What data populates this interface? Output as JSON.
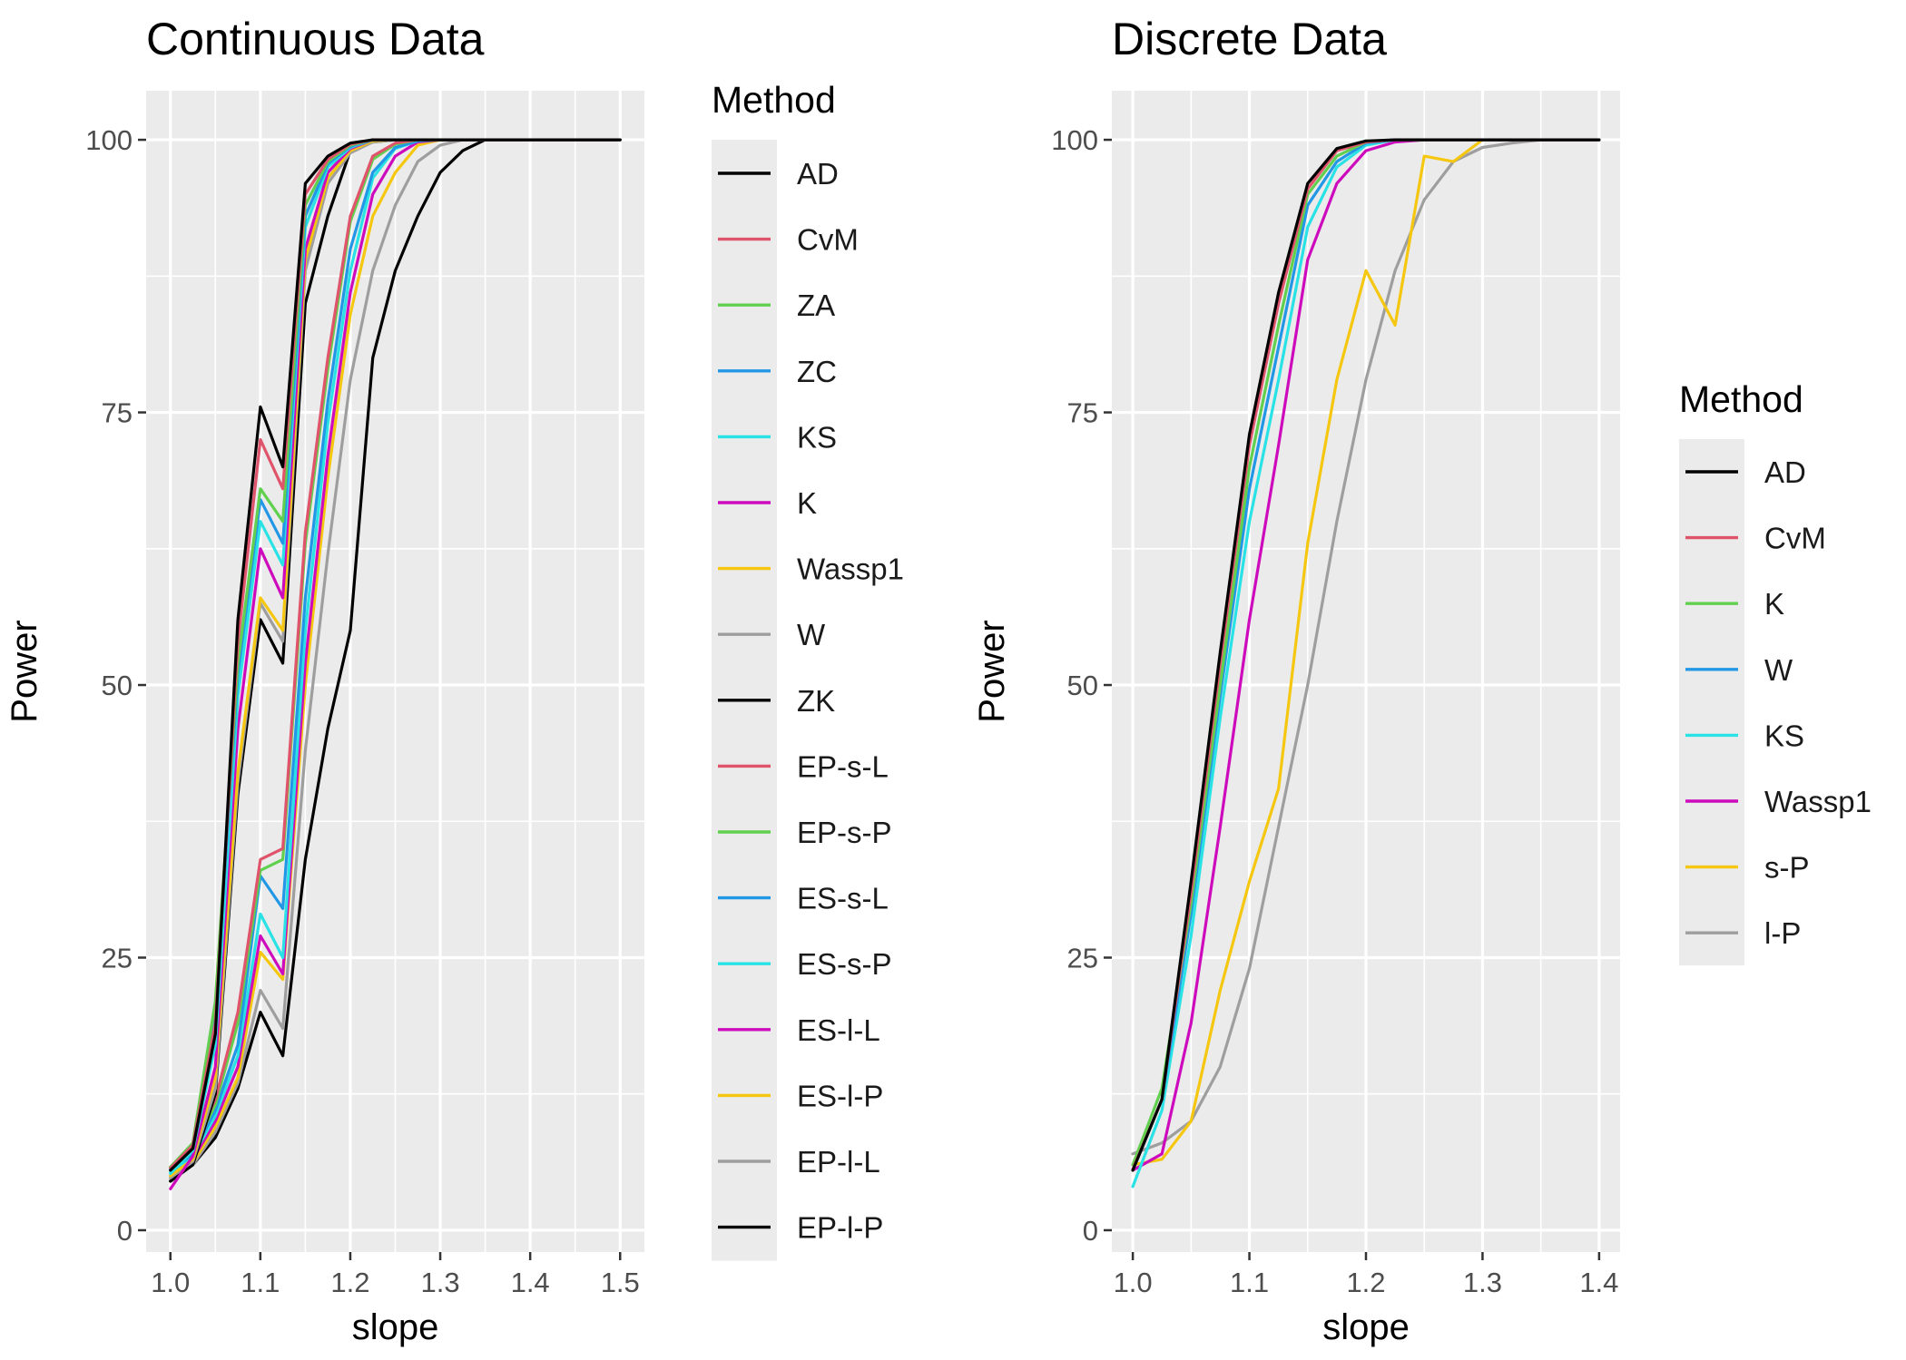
{
  "chart_data": [
    {
      "type": "line",
      "title": "Continuous Data",
      "xlabel": "slope",
      "ylabel": "Power",
      "xlim": [
        0.973,
        1.527
      ],
      "ylim": [
        -2,
        104.5
      ],
      "xticks": [
        1.0,
        1.1,
        1.2,
        1.3,
        1.4,
        1.5
      ],
      "xtick_labels": [
        "1.0",
        "1.1",
        "1.2",
        "1.3",
        "1.4",
        "1.5"
      ],
      "yticks": [
        0,
        25,
        50,
        75,
        100
      ],
      "ytick_labels": [
        "0",
        "25",
        "50",
        "75",
        "100"
      ],
      "legend": {
        "title": "Method",
        "placement": "right"
      },
      "x": [
        1.0,
        1.025,
        1.05,
        1.075,
        1.1,
        1.125,
        1.15,
        1.175,
        1.2,
        1.225,
        1.25,
        1.275,
        1.3,
        1.325,
        1.35,
        1.375,
        1.4,
        1.425,
        1.45,
        1.475,
        1.5
      ],
      "series": [
        {
          "name": "AD",
          "color": "#000000",
          "values": [
            5.5,
            7.5,
            18,
            56,
            75.5,
            70,
            96,
            98.5,
            99.7,
            100,
            100,
            100,
            100,
            100,
            100,
            100,
            100,
            100,
            100,
            100,
            100
          ]
        },
        {
          "name": "CvM",
          "color": "#DF536B",
          "values": [
            5.7,
            7.8,
            19,
            54,
            72.5,
            68,
            95,
            98.2,
            99.6,
            100,
            100,
            100,
            100,
            100,
            100,
            100,
            100,
            100,
            100,
            100,
            100
          ]
        },
        {
          "name": "ZA",
          "color": "#61D04F",
          "values": [
            5.8,
            8,
            21,
            52,
            68,
            65,
            94,
            98,
            99.5,
            100,
            100,
            100,
            100,
            100,
            100,
            100,
            100,
            100,
            100,
            100,
            100
          ]
        },
        {
          "name": "ZC",
          "color": "#2297E6",
          "values": [
            5.6,
            7.7,
            20,
            51,
            67,
            63,
            93,
            97.8,
            99.4,
            100,
            100,
            100,
            100,
            100,
            100,
            100,
            100,
            100,
            100,
            100,
            100
          ]
        },
        {
          "name": "KS",
          "color": "#28E2E5",
          "values": [
            5.2,
            7.3,
            17,
            49,
            65,
            61,
            92,
            97.5,
            99.3,
            100,
            100,
            100,
            100,
            100,
            100,
            100,
            100,
            100,
            100,
            100,
            100
          ]
        },
        {
          "name": "K",
          "color": "#CD0BBC",
          "values": [
            3.8,
            6.8,
            15,
            46,
            62.5,
            58,
            90,
            97,
            99.2,
            100,
            100,
            100,
            100,
            100,
            100,
            100,
            100,
            100,
            100,
            100,
            100
          ]
        },
        {
          "name": "Wassp1",
          "color": "#F5C710",
          "values": [
            5.0,
            6.5,
            14,
            42,
            58,
            55,
            89,
            96.5,
            99,
            99.9,
            100,
            100,
            100,
            100,
            100,
            100,
            100,
            100,
            100,
            100,
            100
          ]
        },
        {
          "name": "W",
          "color": "#9E9E9E",
          "values": [
            4.8,
            6.3,
            13,
            41,
            57.5,
            54,
            88,
            96,
            98.8,
            99.8,
            100,
            100,
            100,
            100,
            100,
            100,
            100,
            100,
            100,
            100,
            100
          ]
        },
        {
          "name": "ZK",
          "color": "#000000",
          "values": [
            4.5,
            6.0,
            12.5,
            40,
            56,
            52,
            85,
            93,
            99,
            99.8,
            100,
            100,
            100,
            100,
            100,
            100,
            100,
            100,
            100,
            100,
            100
          ]
        },
        {
          "name": "EP-s-L",
          "color": "#DF536B",
          "values": [
            5.8,
            7.5,
            12,
            20,
            34,
            35,
            64,
            80,
            93,
            98.5,
            99.7,
            100,
            100,
            100,
            100,
            100,
            100,
            100,
            100,
            100,
            100
          ]
        },
        {
          "name": "EP-s-P",
          "color": "#61D04F",
          "values": [
            5.6,
            7.3,
            11.5,
            19,
            33,
            34,
            63,
            79,
            92.5,
            98.2,
            99.6,
            100,
            100,
            100,
            100,
            100,
            100,
            100,
            100,
            100,
            100
          ]
        },
        {
          "name": "ES-s-L",
          "color": "#2297E6",
          "values": [
            5.5,
            7.0,
            11,
            17,
            32.5,
            29.5,
            58,
            76,
            90,
            97,
            99.3,
            99.9,
            100,
            100,
            100,
            100,
            100,
            100,
            100,
            100,
            100
          ]
        },
        {
          "name": "ES-s-P",
          "color": "#28E2E5",
          "values": [
            5.3,
            6.8,
            10.5,
            16,
            29,
            25,
            55,
            74,
            88,
            96.5,
            99.2,
            99.9,
            100,
            100,
            100,
            100,
            100,
            100,
            100,
            100,
            100
          ]
        },
        {
          "name": "ES-l-L",
          "color": "#CD0BBC",
          "values": [
            5.0,
            6.5,
            10,
            15,
            27,
            23.5,
            52,
            71,
            86,
            95,
            98.5,
            99.8,
            100,
            100,
            100,
            100,
            100,
            100,
            100,
            100,
            100
          ]
        },
        {
          "name": "ES-l-P",
          "color": "#F5C710",
          "values": [
            4.8,
            6.2,
            9.5,
            14,
            25.5,
            23,
            50,
            69,
            84,
            93,
            97,
            99.5,
            100,
            100,
            100,
            100,
            100,
            100,
            100,
            100,
            100
          ]
        },
        {
          "name": "EP-l-L",
          "color": "#9E9E9E",
          "values": [
            4.6,
            6.0,
            9,
            13.5,
            22,
            18.5,
            44,
            62,
            78,
            88,
            94,
            98,
            99.5,
            100,
            100,
            100,
            100,
            100,
            100,
            100,
            100
          ]
        },
        {
          "name": "EP-l-P",
          "color": "#000000",
          "values": [
            4.5,
            6.0,
            8.5,
            13,
            20,
            16,
            34,
            46,
            55,
            80,
            88,
            93,
            97,
            99,
            100,
            100,
            100,
            100,
            100,
            100,
            100
          ]
        }
      ]
    },
    {
      "type": "line",
      "title": "Discrete Data",
      "xlabel": "slope",
      "ylabel": "Power",
      "xlim": [
        0.982,
        1.418
      ],
      "ylim": [
        -2,
        104.5
      ],
      "xticks": [
        1.0,
        1.1,
        1.2,
        1.3,
        1.4
      ],
      "xtick_labels": [
        "1.0",
        "1.1",
        "1.2",
        "1.3",
        "1.4"
      ],
      "yticks": [
        0,
        25,
        50,
        75,
        100
      ],
      "ytick_labels": [
        "0",
        "25",
        "50",
        "75",
        "100"
      ],
      "legend": {
        "title": "Method",
        "placement": "right"
      },
      "x": [
        1.0,
        1.025,
        1.05,
        1.075,
        1.1,
        1.125,
        1.15,
        1.175,
        1.2,
        1.225,
        1.25,
        1.275,
        1.3,
        1.325,
        1.35,
        1.375,
        1.4
      ],
      "series": [
        {
          "name": "AD",
          "color": "#000000",
          "values": [
            5.5,
            12,
            32,
            53,
            73,
            86,
            96,
            99.2,
            99.9,
            100,
            100,
            100,
            100,
            100,
            100,
            100,
            100
          ]
        },
        {
          "name": "CvM",
          "color": "#DF536B",
          "values": [
            5.6,
            12,
            31,
            52,
            72,
            85,
            95.5,
            99,
            99.8,
            100,
            100,
            100,
            100,
            100,
            100,
            100,
            100
          ]
        },
        {
          "name": "K",
          "color": "#61D04F",
          "values": [
            6.0,
            13,
            30,
            50,
            70,
            83,
            95,
            98.5,
            99.8,
            100,
            100,
            100,
            100,
            100,
            100,
            100,
            100
          ]
        },
        {
          "name": "W",
          "color": "#2297E6",
          "values": [
            5.5,
            12,
            29,
            49,
            68,
            81,
            94,
            98,
            99.7,
            100,
            100,
            100,
            100,
            100,
            100,
            100,
            100
          ]
        },
        {
          "name": "KS",
          "color": "#28E2E5",
          "values": [
            4.0,
            11,
            27,
            47,
            65,
            78,
            92,
            97.5,
            99.5,
            100,
            100,
            100,
            100,
            100,
            100,
            100,
            100
          ]
        },
        {
          "name": "Wassp1",
          "color": "#CD0BBC",
          "values": [
            5.5,
            7,
            19,
            37,
            56,
            72,
            89,
            96,
            99,
            99.8,
            100,
            100,
            100,
            100,
            100,
            100,
            100
          ]
        },
        {
          "name": "s-P",
          "color": "#F5C710",
          "values": [
            6.0,
            6.5,
            10,
            22,
            32,
            40.5,
            63,
            78,
            88,
            83,
            98.5,
            98,
            100,
            100,
            100,
            100,
            100
          ]
        },
        {
          "name": "l-P",
          "color": "#9E9E9E",
          "values": [
            7.0,
            8.0,
            10,
            15,
            24,
            37,
            50,
            65,
            78,
            88,
            94.5,
            98,
            99.3,
            99.7,
            100,
            100,
            100
          ]
        }
      ]
    }
  ]
}
